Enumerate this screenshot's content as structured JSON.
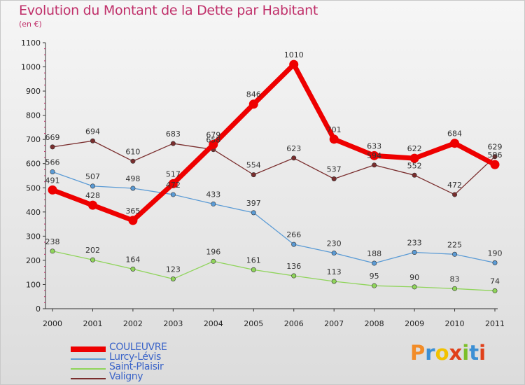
{
  "title": "Evolution du Montant de la Dette par Habitant",
  "subtitle": "(en €)",
  "logo": {
    "text": "Proxiti",
    "colors": [
      "#f28c28",
      "#3b8fd4",
      "#f2c200",
      "#e0401a",
      "#7cbf2a",
      "#3b8fd4",
      "#e0401a"
    ]
  },
  "chart_data": {
    "type": "line",
    "title": "Evolution du Montant de la Dette par Habitant",
    "subtitle": "(en €)",
    "xlabel": "",
    "ylabel": "",
    "x": [
      "2000",
      "2001",
      "2002",
      "2003",
      "2004",
      "2005",
      "2006",
      "2007",
      "2008",
      "2009",
      "2010",
      "2011"
    ],
    "ylim": [
      0,
      1100
    ],
    "yticks": [
      0,
      100,
      200,
      300,
      400,
      500,
      600,
      700,
      800,
      900,
      1000,
      1100
    ],
    "grid": false,
    "legend": "bottom-left",
    "series": [
      {
        "name": "COULEUVRE",
        "color": "#ee0000",
        "values": [
          491,
          428,
          365,
          517,
          679,
          846,
          1010,
          701,
          633,
          622,
          684,
          596
        ]
      },
      {
        "name": "Lurcy-Lévis",
        "color": "#5b9bd5",
        "values": [
          566,
          507,
          498,
          472,
          433,
          397,
          266,
          230,
          188,
          233,
          225,
          190
        ]
      },
      {
        "name": "Saint-Plaisir",
        "color": "#8fd45a",
        "values": [
          238,
          202,
          164,
          123,
          196,
          161,
          136,
          113,
          95,
          90,
          83,
          74
        ]
      },
      {
        "name": "Valigny",
        "color": "#7a2e2e",
        "values": [
          669,
          694,
          610,
          683,
          658,
          554,
          623,
          537,
          594,
          552,
          472,
          629
        ]
      }
    ]
  }
}
